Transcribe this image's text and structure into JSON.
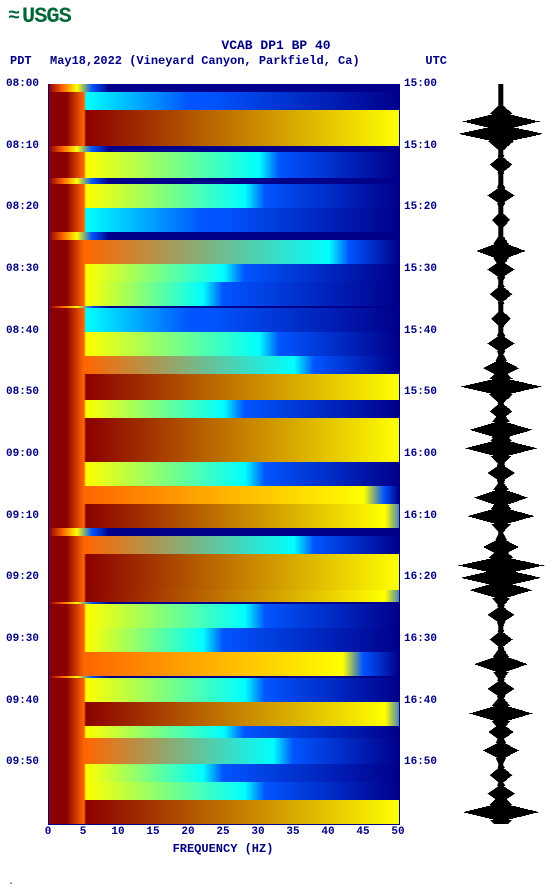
{
  "logo": {
    "wave_glyph": "≈",
    "text": "USGS",
    "color": "#006837"
  },
  "header": {
    "line1": "VCAB DP1 BP 40",
    "tz_left": "PDT",
    "date_station": "May18,2022 (Vineyard Canyon, Parkfield, Ca)",
    "tz_right": "UTC",
    "text_color": "#000080",
    "title_fontsize": 13
  },
  "spectrogram": {
    "type": "spectrogram",
    "x_axis": {
      "label": "FREQUENCY (HZ)",
      "min": 0,
      "max": 50,
      "ticks": [
        0,
        5,
        10,
        15,
        20,
        25,
        30,
        35,
        40,
        45,
        50
      ]
    },
    "y_axis_left": {
      "label": "PDT",
      "ticks": [
        "08:00",
        "08:10",
        "08:20",
        "08:30",
        "08:40",
        "08:50",
        "09:00",
        "09:10",
        "09:20",
        "09:30",
        "09:40",
        "09:50"
      ]
    },
    "y_axis_right": {
      "label": "UTC",
      "ticks": [
        "15:00",
        "15:10",
        "15:20",
        "15:30",
        "15:40",
        "15:50",
        "16:00",
        "16:10",
        "16:20",
        "16:30",
        "16:40",
        "16:50"
      ]
    },
    "time_range_minutes": 120,
    "colormap": {
      "low": "#00008b",
      "mid_low": "#0055ff",
      "mid": "#00ffff",
      "mid_high": "#ffff00",
      "high": "#ff6600",
      "peak": "#8b0000"
    },
    "background_color": "#00008b",
    "grid_color": "#c8c8ff",
    "events": [
      {
        "t": 3,
        "intensity": 0.35,
        "breadth": 20
      },
      {
        "t": 6,
        "intensity": 0.95,
        "breadth": 50
      },
      {
        "t": 8,
        "intensity": 0.9,
        "breadth": 50
      },
      {
        "t": 13,
        "intensity": 0.5,
        "breadth": 30
      },
      {
        "t": 18,
        "intensity": 0.6,
        "breadth": 28
      },
      {
        "t": 22,
        "intensity": 0.4,
        "breadth": 22
      },
      {
        "t": 27,
        "intensity": 0.8,
        "breadth": 40
      },
      {
        "t": 30,
        "intensity": 0.55,
        "breadth": 25
      },
      {
        "t": 34,
        "intensity": 0.5,
        "breadth": 22
      },
      {
        "t": 38,
        "intensity": 0.45,
        "breadth": 20
      },
      {
        "t": 42,
        "intensity": 0.6,
        "breadth": 30
      },
      {
        "t": 46,
        "intensity": 0.7,
        "breadth": 35
      },
      {
        "t": 49,
        "intensity": 0.98,
        "breadth": 50
      },
      {
        "t": 53,
        "intensity": 0.5,
        "breadth": 25
      },
      {
        "t": 56,
        "intensity": 0.95,
        "breadth": 50
      },
      {
        "t": 59,
        "intensity": 0.98,
        "breadth": 50
      },
      {
        "t": 63,
        "intensity": 0.6,
        "breadth": 28
      },
      {
        "t": 67,
        "intensity": 0.85,
        "breadth": 45
      },
      {
        "t": 70,
        "intensity": 0.9,
        "breadth": 48
      },
      {
        "t": 75,
        "intensity": 0.7,
        "breadth": 35
      },
      {
        "t": 78,
        "intensity": 0.98,
        "breadth": 50
      },
      {
        "t": 80,
        "intensity": 0.95,
        "breadth": 50
      },
      {
        "t": 82,
        "intensity": 0.9,
        "breadth": 48
      },
      {
        "t": 86,
        "intensity": 0.6,
        "breadth": 28
      },
      {
        "t": 90,
        "intensity": 0.5,
        "breadth": 22
      },
      {
        "t": 94,
        "intensity": 0.85,
        "breadth": 42
      },
      {
        "t": 98,
        "intensity": 0.6,
        "breadth": 28
      },
      {
        "t": 102,
        "intensity": 0.9,
        "breadth": 48
      },
      {
        "t": 105,
        "intensity": 0.55,
        "breadth": 25
      },
      {
        "t": 108,
        "intensity": 0.7,
        "breadth": 32
      },
      {
        "t": 112,
        "intensity": 0.5,
        "breadth": 22
      },
      {
        "t": 115,
        "intensity": 0.6,
        "breadth": 28
      },
      {
        "t": 118,
        "intensity": 0.98,
        "breadth": 50
      }
    ],
    "low_freq_band_hz": 5
  },
  "waveform": {
    "color": "#000000",
    "background": "#ffffff",
    "baseline_amp": 0.06,
    "spikes": [
      {
        "t": 6,
        "amp": 0.85
      },
      {
        "t": 8,
        "amp": 0.95
      },
      {
        "t": 13,
        "amp": 0.25
      },
      {
        "t": 18,
        "amp": 0.3
      },
      {
        "t": 22,
        "amp": 0.2
      },
      {
        "t": 27,
        "amp": 0.55
      },
      {
        "t": 30,
        "amp": 0.3
      },
      {
        "t": 34,
        "amp": 0.25
      },
      {
        "t": 38,
        "amp": 0.22
      },
      {
        "t": 42,
        "amp": 0.3
      },
      {
        "t": 46,
        "amp": 0.4
      },
      {
        "t": 49,
        "amp": 0.9
      },
      {
        "t": 53,
        "amp": 0.25
      },
      {
        "t": 56,
        "amp": 0.7
      },
      {
        "t": 59,
        "amp": 0.8
      },
      {
        "t": 63,
        "amp": 0.3
      },
      {
        "t": 67,
        "amp": 0.6
      },
      {
        "t": 70,
        "amp": 0.75
      },
      {
        "t": 75,
        "amp": 0.4
      },
      {
        "t": 78,
        "amp": 0.95
      },
      {
        "t": 80,
        "amp": 0.9
      },
      {
        "t": 82,
        "amp": 0.7
      },
      {
        "t": 86,
        "amp": 0.3
      },
      {
        "t": 90,
        "amp": 0.25
      },
      {
        "t": 94,
        "amp": 0.6
      },
      {
        "t": 98,
        "amp": 0.3
      },
      {
        "t": 102,
        "amp": 0.7
      },
      {
        "t": 105,
        "amp": 0.28
      },
      {
        "t": 108,
        "amp": 0.4
      },
      {
        "t": 112,
        "amp": 0.25
      },
      {
        "t": 115,
        "amp": 0.3
      },
      {
        "t": 118,
        "amp": 0.85
      }
    ]
  },
  "footer_mark": "."
}
